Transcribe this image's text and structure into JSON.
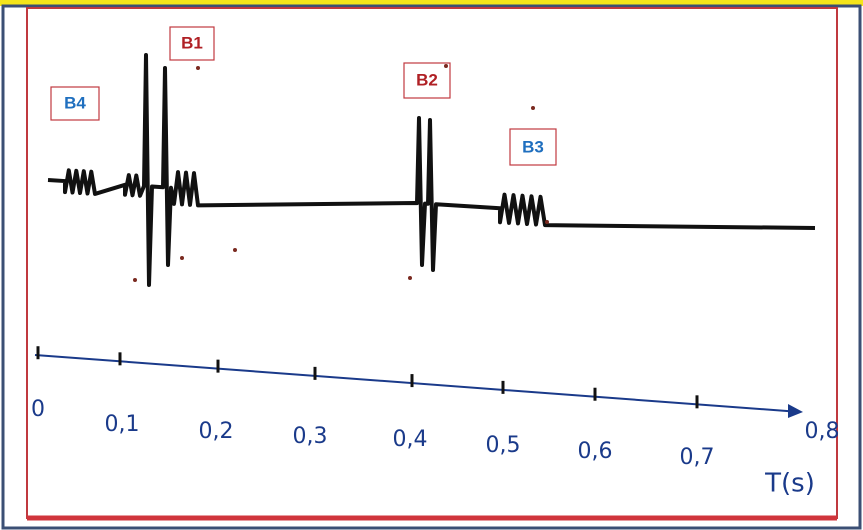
{
  "sounds": {
    "b1": "B1",
    "b2": "B2",
    "b3": "B3",
    "b4": "B4"
  },
  "axis": {
    "ticks": [
      "0",
      "0,1",
      "0,2",
      "0,3",
      "0,4",
      "0,5",
      "0,6",
      "0,7",
      "0,8"
    ],
    "title": "T(s)"
  }
}
